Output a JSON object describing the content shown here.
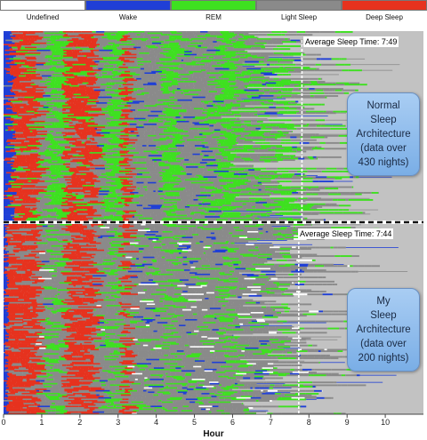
{
  "legend": [
    {
      "label": "Undefined",
      "color": "#ffffff"
    },
    {
      "label": "Wake",
      "color": "#1f3fd6"
    },
    {
      "label": "REM",
      "color": "#3ee020"
    },
    {
      "label": "Light Sleep",
      "color": "#8a8a8a"
    },
    {
      "label": "Deep Sleep",
      "color": "#e6321e"
    }
  ],
  "background_color": "#c2c2c2",
  "chart_data": [
    {
      "type": "heatmap",
      "panel": "top",
      "annotation": "Average Sleep Time: 7:49",
      "average_sleep_hours": 7.817,
      "callout_lines": [
        "Normal",
        "Sleep",
        "Architecture",
        "(data over",
        "430 nights)"
      ],
      "nights": 430,
      "xlim": [
        0,
        11
      ],
      "xlabel": "Hour",
      "xticks": [
        "0",
        "1",
        "2",
        "3",
        "4",
        "5",
        "6",
        "7",
        "8",
        "9",
        "10"
      ],
      "legend_placement": "top"
    },
    {
      "type": "heatmap",
      "panel": "bottom",
      "annotation": "Average Sleep Time: 7:44",
      "average_sleep_hours": 7.733,
      "callout_lines": [
        "My",
        "Sleep",
        "Architecture",
        "(data over",
        "200 nights)"
      ],
      "nights": 200,
      "xlim": [
        0,
        11
      ],
      "xlabel": "Hour",
      "xticks": [
        "0",
        "1",
        "2",
        "3",
        "4",
        "5",
        "6",
        "7",
        "8",
        "9",
        "10"
      ],
      "legend_placement": "top"
    }
  ]
}
